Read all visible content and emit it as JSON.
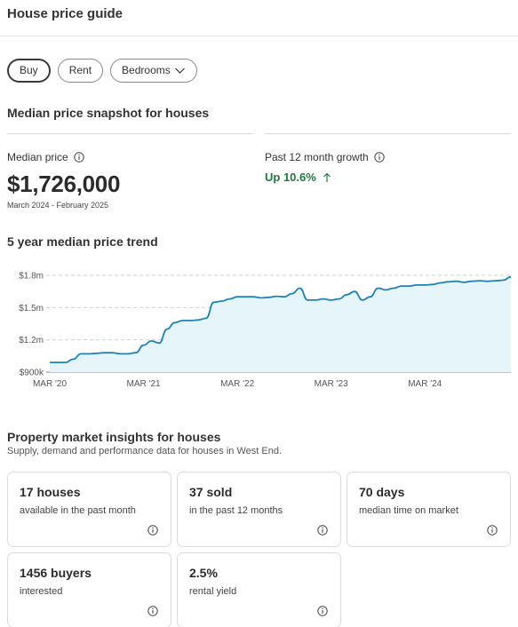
{
  "header": {
    "title": "House price guide"
  },
  "filters": [
    {
      "label": "Buy",
      "active": true
    },
    {
      "label": "Rent",
      "active": false
    },
    {
      "label": "Bedrooms",
      "active": false,
      "dropdown": true
    }
  ],
  "snapshot": {
    "title": "Median price snapshot for houses",
    "median_label": "Median price",
    "median_value": "$1,726,000",
    "median_range": "March 2024 - February 2025",
    "growth_label": "Past 12 month growth",
    "growth_value": "Up 10.6%",
    "growth_color": "#1f7a3f"
  },
  "trend": {
    "title": "5 year median price trend"
  },
  "chart_data": {
    "type": "area",
    "title": "5 year median price trend",
    "xlabel": "",
    "ylabel": "",
    "x_tick_labels": [
      "MAR '20",
      "MAR '21",
      "MAR '22",
      "MAR '23",
      "MAR '24"
    ],
    "y_tick_labels": [
      "$900k",
      "$1.2m",
      "$1.5m",
      "$1.8m"
    ],
    "y_ticks": [
      900000,
      1200000,
      1500000,
      1800000
    ],
    "ylim": [
      900000,
      1800000
    ],
    "x_range_months": [
      0,
      59
    ],
    "grid": "horizontal-dashed",
    "line_color": "#1f82b8",
    "fill_color": "#e6f5fa",
    "series": [
      {
        "x": [
          0,
          2,
          3,
          4,
          5,
          6,
          7,
          8,
          9,
          10,
          11,
          12,
          13,
          14,
          15,
          16,
          17,
          18,
          19,
          20,
          21,
          22,
          23,
          24,
          25,
          26,
          27,
          28,
          29,
          30,
          31,
          32,
          33,
          34,
          35,
          36,
          37,
          38,
          39,
          40,
          41,
          42,
          43,
          44,
          45,
          46,
          47,
          48,
          49,
          50,
          51,
          52,
          53,
          54,
          55,
          56,
          57,
          58,
          59
        ],
        "y": [
          990000,
          990000,
          1020000,
          1070000,
          1070000,
          1075000,
          1080000,
          1080000,
          1070000,
          1070000,
          1080000,
          1150000,
          1190000,
          1170000,
          1300000,
          1360000,
          1380000,
          1380000,
          1385000,
          1400000,
          1550000,
          1560000,
          1580000,
          1600000,
          1600000,
          1600000,
          1590000,
          1595000,
          1605000,
          1600000,
          1630000,
          1680000,
          1570000,
          1570000,
          1580000,
          1570000,
          1580000,
          1620000,
          1650000,
          1570000,
          1600000,
          1680000,
          1665000,
          1680000,
          1700000,
          1700000,
          1710000,
          1710000,
          1715000,
          1730000,
          1740000,
          1745000,
          1735000,
          1745000,
          1750000,
          1745000,
          1750000,
          1755000,
          1785000
        ]
      }
    ]
  },
  "insights": {
    "title": "Property market insights for houses",
    "subtitle": "Supply, demand and performance data for houses in West End.",
    "cards": [
      {
        "value": "17 houses",
        "desc": "available in the past month"
      },
      {
        "value": "37 sold",
        "desc": "in the past 12 months"
      },
      {
        "value": "70 days",
        "desc": "median time on market"
      },
      {
        "value": "1456 buyers",
        "desc": "interested"
      },
      {
        "value": "2.5%",
        "desc": "rental yield"
      }
    ]
  }
}
